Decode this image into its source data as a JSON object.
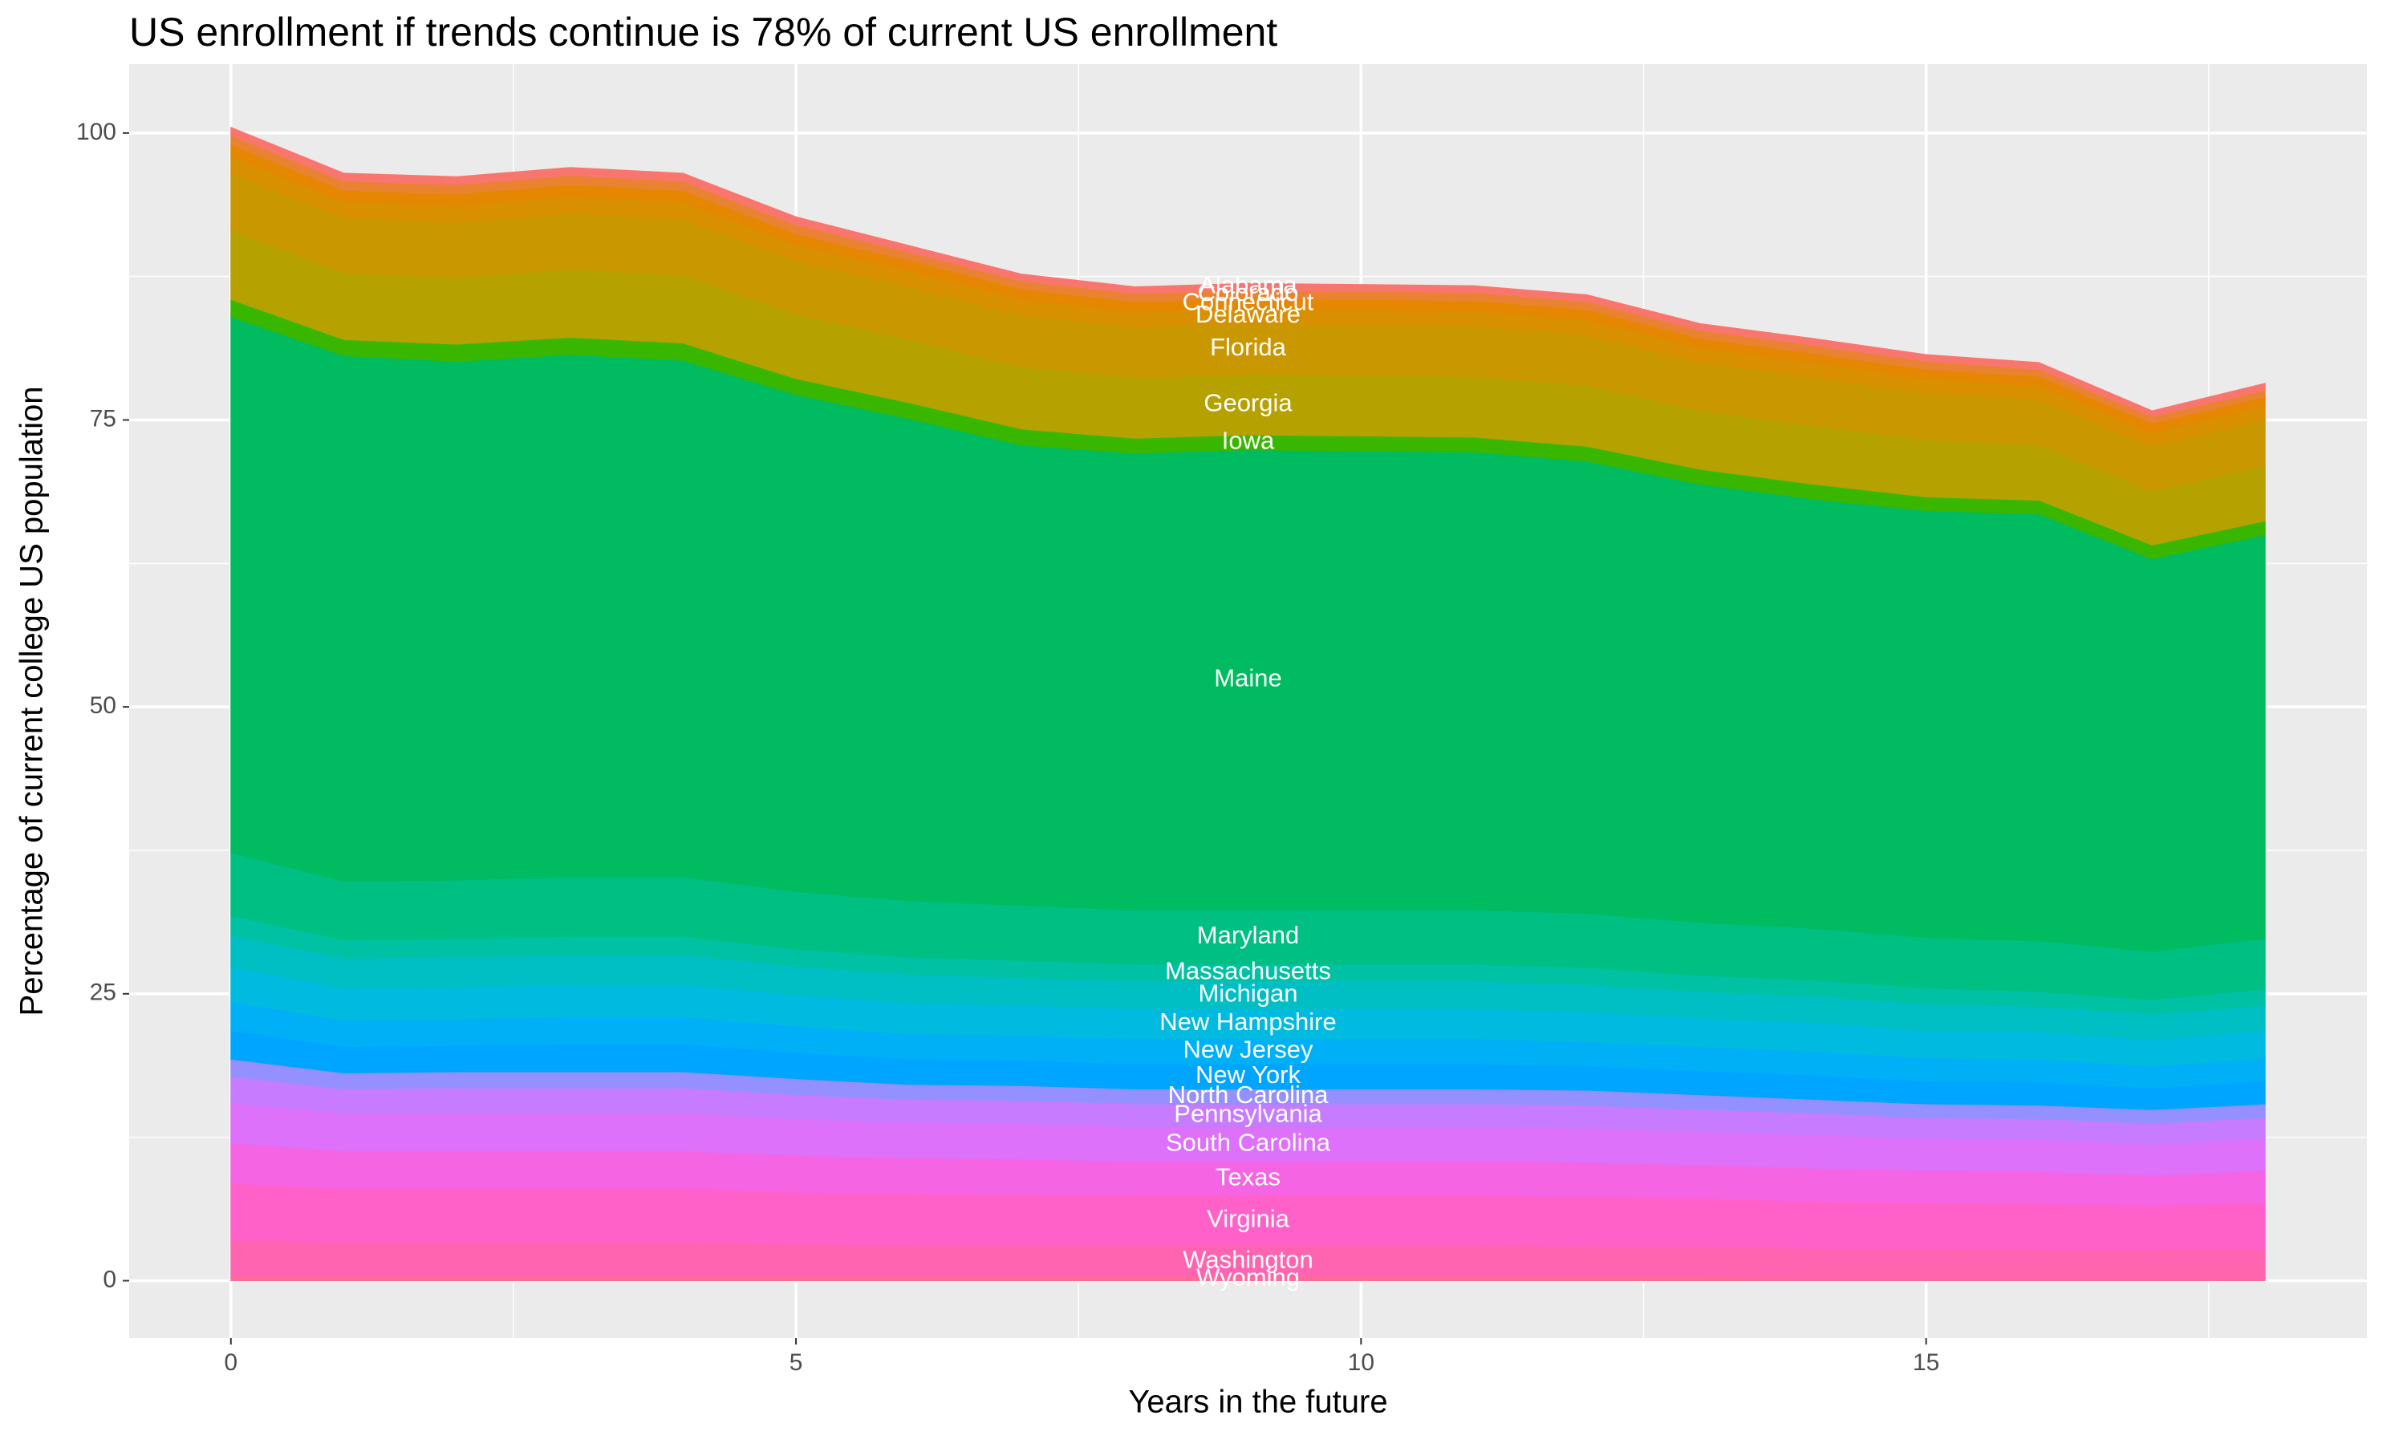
{
  "chart_data": {
    "type": "stacked_area",
    "title": "US enrollment if trends continue is 78% of current US enrollment",
    "x_label": "Years in the future",
    "y_label": "Percentage of current college US population",
    "x": [
      0,
      1,
      2,
      3,
      4,
      5,
      6,
      7,
      8,
      9,
      10,
      11,
      12,
      13,
      14,
      15,
      16,
      17,
      18
    ],
    "xlim": [
      -0.9,
      18.9
    ],
    "xticks": [
      0,
      5,
      10,
      15
    ],
    "ylim": [
      -5,
      106
    ],
    "yticks": [
      0,
      25,
      50,
      75,
      100
    ],
    "grid": true,
    "series": [
      {
        "name": "Alabama",
        "color": "#F8766D",
        "values": [
          0.7,
          0.7,
          0.7,
          0.7,
          0.7,
          0.7,
          0.6,
          0.6,
          0.6,
          0.6,
          0.6,
          0.6,
          0.6,
          0.6,
          0.6,
          0.6,
          0.6,
          0.5,
          0.6
        ]
      },
      {
        "name": "Colorado",
        "color": "#EA8331",
        "values": [
          0.8,
          0.8,
          0.8,
          0.8,
          0.8,
          0.8,
          0.7,
          0.7,
          0.7,
          0.7,
          0.7,
          0.7,
          0.7,
          0.7,
          0.7,
          0.7,
          0.6,
          0.6,
          0.6
        ]
      },
      {
        "name": "Connecticut",
        "color": "#E58700",
        "values": [
          1.0,
          1.0,
          1.0,
          1.0,
          1.0,
          0.9,
          0.9,
          0.9,
          0.9,
          0.9,
          0.9,
          0.9,
          0.9,
          0.8,
          0.8,
          0.8,
          0.8,
          0.8,
          0.8
        ]
      },
      {
        "name": "Delaware",
        "color": "#D89000",
        "values": [
          1.5,
          1.4,
          1.5,
          1.5,
          1.5,
          1.4,
          1.4,
          1.4,
          1.3,
          1.3,
          1.3,
          1.3,
          1.3,
          1.3,
          1.3,
          1.2,
          1.2,
          1.2,
          1.2
        ]
      },
      {
        "name": "Florida",
        "color": "#C99800",
        "values": [
          5.0,
          4.8,
          4.8,
          4.9,
          4.9,
          4.7,
          4.6,
          4.5,
          4.4,
          4.4,
          4.4,
          4.4,
          4.4,
          4.2,
          4.2,
          4.1,
          4.0,
          3.9,
          4.0
        ]
      },
      {
        "name": "Georgia",
        "color": "#B5A100",
        "values": [
          6.0,
          5.8,
          5.8,
          5.9,
          5.9,
          5.6,
          5.5,
          5.4,
          5.3,
          5.3,
          5.3,
          5.3,
          5.3,
          5.1,
          5.1,
          5.0,
          4.8,
          4.7,
          4.8
        ]
      },
      {
        "name": "Iowa",
        "color": "#39B600",
        "values": [
          1.5,
          1.4,
          1.5,
          1.5,
          1.5,
          1.4,
          1.4,
          1.4,
          1.3,
          1.3,
          1.3,
          1.3,
          1.3,
          1.3,
          1.3,
          1.2,
          1.2,
          1.2,
          1.2
        ]
      },
      {
        "name": "Maine",
        "color": "#00BB60",
        "values": [
          46.7,
          45.8,
          45.2,
          45.5,
          45.0,
          43.3,
          42.0,
          40.1,
          39.8,
          40.1,
          40.0,
          39.9,
          39.4,
          38.2,
          37.4,
          37.2,
          37.2,
          34.2,
          35.2
        ]
      },
      {
        "name": "Maryland",
        "color": "#00BF83",
        "values": [
          5.5,
          5.1,
          5.1,
          5.2,
          5.2,
          5.0,
          4.9,
          4.8,
          4.7,
          4.7,
          4.7,
          4.7,
          4.7,
          4.6,
          4.5,
          4.4,
          4.4,
          4.2,
          4.4
        ]
      },
      {
        "name": "Massachusetts",
        "color": "#00C1A3",
        "values": [
          1.7,
          1.6,
          1.6,
          1.6,
          1.6,
          1.5,
          1.5,
          1.5,
          1.5,
          1.5,
          1.5,
          1.5,
          1.5,
          1.4,
          1.4,
          1.4,
          1.3,
          1.3,
          1.4
        ]
      },
      {
        "name": "Michigan",
        "color": "#00BFC4",
        "values": [
          2.8,
          2.6,
          2.6,
          2.6,
          2.6,
          2.5,
          2.5,
          2.4,
          2.4,
          2.4,
          2.4,
          2.4,
          2.4,
          2.3,
          2.3,
          2.3,
          2.2,
          2.2,
          2.2
        ]
      },
      {
        "name": "New Hampshire",
        "color": "#00BAE0",
        "values": [
          3.0,
          2.8,
          2.8,
          2.8,
          2.8,
          2.7,
          2.7,
          2.6,
          2.6,
          2.6,
          2.6,
          2.6,
          2.6,
          2.5,
          2.5,
          2.4,
          2.4,
          2.3,
          2.4
        ]
      },
      {
        "name": "New Jersey",
        "color": "#00B0F6",
        "values": [
          2.5,
          2.3,
          2.3,
          2.4,
          2.4,
          2.3,
          2.2,
          2.2,
          2.2,
          2.2,
          2.2,
          2.2,
          2.1,
          2.1,
          2.1,
          2.0,
          2.0,
          1.9,
          2.0
        ]
      },
      {
        "name": "New York",
        "color": "#00A5FF",
        "values": [
          2.5,
          2.3,
          2.3,
          2.4,
          2.4,
          2.3,
          2.2,
          2.2,
          2.2,
          2.2,
          2.2,
          2.2,
          2.1,
          2.1,
          2.1,
          2.0,
          2.0,
          1.9,
          2.0
        ]
      },
      {
        "name": "North Carolina",
        "color": "#9590FF",
        "values": [
          1.5,
          1.4,
          1.4,
          1.4,
          1.4,
          1.4,
          1.3,
          1.3,
          1.3,
          1.3,
          1.3,
          1.3,
          1.3,
          1.3,
          1.2,
          1.2,
          1.2,
          1.2,
          1.2
        ]
      },
      {
        "name": "Pennsylvania",
        "color": "#C77CFF",
        "values": [
          2.3,
          2.1,
          2.2,
          2.2,
          2.2,
          2.1,
          2.0,
          2.0,
          2.0,
          2.0,
          2.0,
          2.0,
          2.0,
          1.9,
          1.9,
          1.8,
          1.8,
          1.8,
          1.8
        ]
      },
      {
        "name": "South Carolina",
        "color": "#DD71FA",
        "values": [
          3.5,
          3.3,
          3.3,
          3.3,
          3.3,
          3.2,
          3.1,
          3.1,
          3.0,
          3.0,
          3.0,
          3.0,
          3.0,
          2.9,
          2.9,
          2.8,
          2.8,
          2.7,
          2.8
        ]
      },
      {
        "name": "Texas",
        "color": "#F564E3",
        "values": [
          3.5,
          3.3,
          3.3,
          3.3,
          3.3,
          3.2,
          3.1,
          3.1,
          3.0,
          3.0,
          3.0,
          3.0,
          3.0,
          2.9,
          2.9,
          2.8,
          2.8,
          2.7,
          2.8
        ]
      },
      {
        "name": "Virginia",
        "color": "#FF61C9",
        "values": [
          5.0,
          4.7,
          4.7,
          4.7,
          4.7,
          4.5,
          4.5,
          4.4,
          4.3,
          4.3,
          4.3,
          4.3,
          4.3,
          4.2,
          4.1,
          4.0,
          4.0,
          3.8,
          4.0
        ]
      },
      {
        "name": "Washington",
        "color": "#FF64B0",
        "values": [
          3.2,
          3.0,
          3.0,
          3.0,
          3.0,
          2.9,
          2.8,
          2.8,
          2.8,
          2.8,
          2.8,
          2.8,
          2.7,
          2.7,
          2.6,
          2.6,
          2.5,
          2.5,
          2.6
        ]
      },
      {
        "name": "Wyoming",
        "color": "#FF6C91",
        "values": [
          0.3,
          0.3,
          0.3,
          0.3,
          0.3,
          0.3,
          0.3,
          0.3,
          0.3,
          0.3,
          0.3,
          0.3,
          0.3,
          0.3,
          0.2,
          0.2,
          0.2,
          0.2,
          0.2
        ]
      }
    ]
  }
}
